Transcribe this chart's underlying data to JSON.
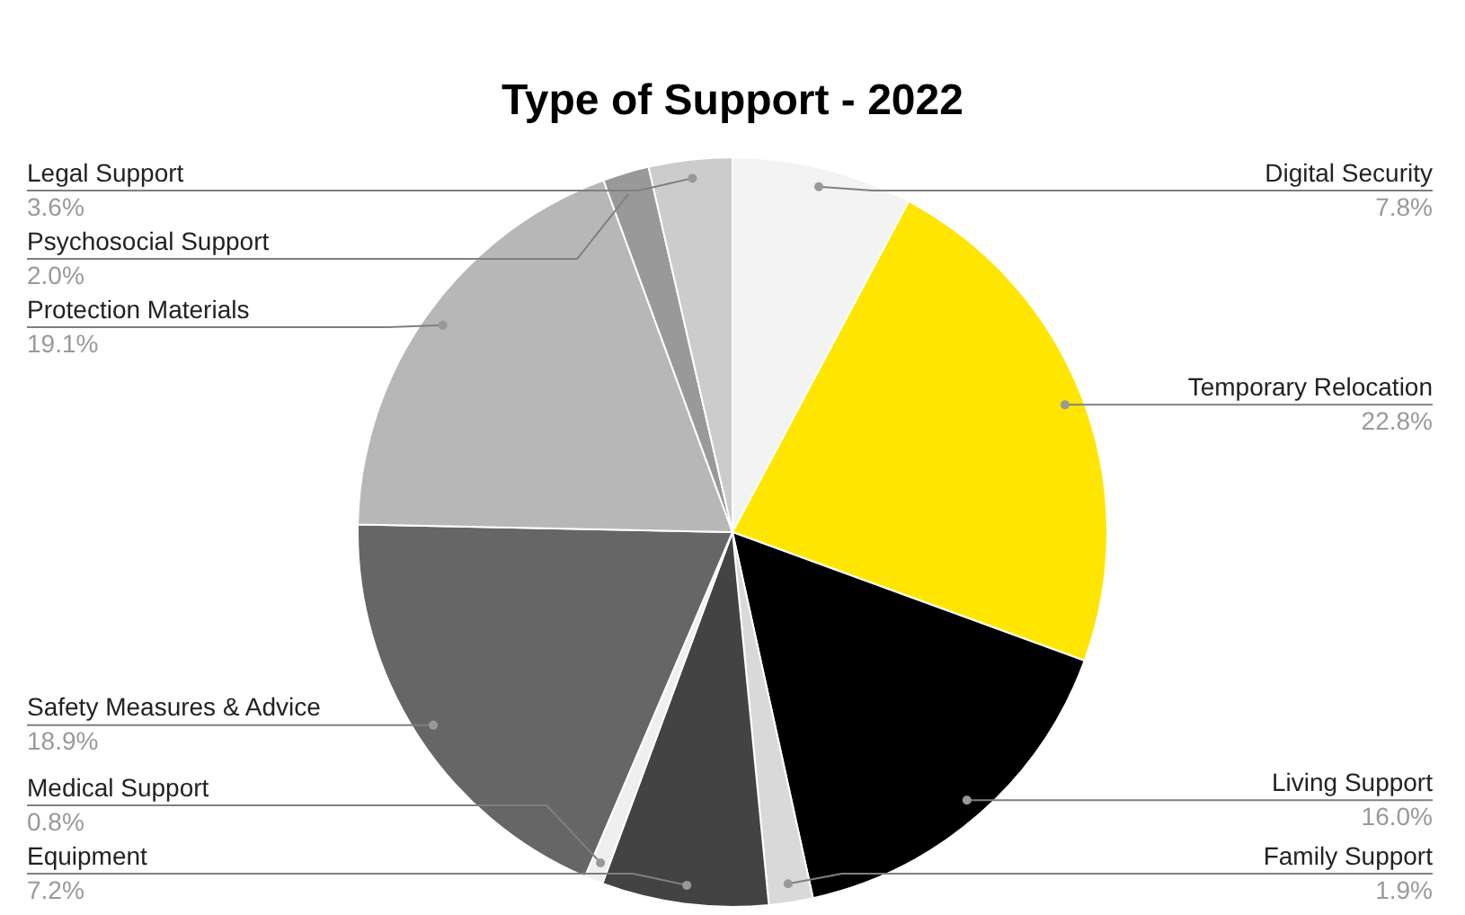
{
  "chart_data": {
    "type": "pie",
    "title": "Type of Support - 2022",
    "categories": [
      "Digital Security",
      "Temporary Relocation",
      "Living Support",
      "Family Support",
      "Equipment",
      "Medical Support",
      "Safety Measures & Advice",
      "Protection Materials",
      "Psychosocial Support",
      "Legal Support"
    ],
    "values": [
      7.8,
      22.8,
      16.0,
      1.9,
      7.2,
      0.8,
      18.9,
      19.1,
      2.0,
      3.6
    ],
    "value_labels": [
      "7.8%",
      "22.8%",
      "16.0%",
      "1.9%",
      "7.2%",
      "0.8%",
      "18.9%",
      "19.1%",
      "2.0%",
      "3.6%"
    ],
    "colors": [
      "#f3f3f3",
      "#ffe600",
      "#000000",
      "#d9d9d9",
      "#434343",
      "#efefef",
      "#666666",
      "#b7b7b7",
      "#999999",
      "#cccccc"
    ],
    "legend": false
  }
}
